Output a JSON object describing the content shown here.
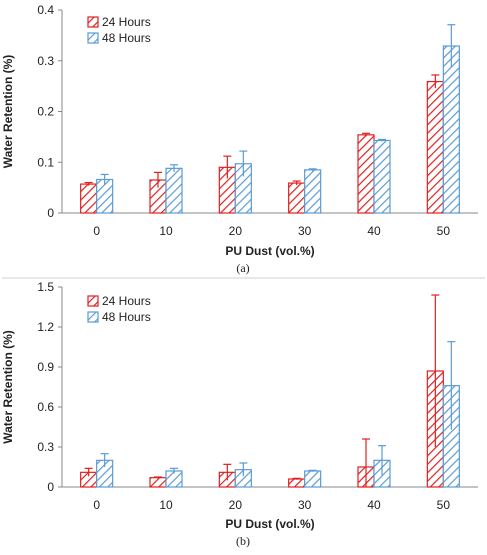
{
  "chart_data": [
    {
      "type": "bar",
      "caption": "(a)",
      "categories": [
        "0",
        "10",
        "20",
        "30",
        "40",
        "50"
      ],
      "xlabel": "PU Dust (vol.%)",
      "ylabel": "Water Retention (%)",
      "ylim": [
        0,
        0.4
      ],
      "yticks": [
        "0",
        "0.1",
        "0.2",
        "0.3",
        "0.4"
      ],
      "ytick_values": [
        0,
        0.1,
        0.2,
        0.3,
        0.4
      ],
      "grid": false,
      "legend_position": "top-left",
      "series": [
        {
          "name": "24 Hours",
          "color": "#e02020",
          "values": [
            0.057,
            0.065,
            0.09,
            0.059,
            0.154,
            0.259
          ],
          "errors": [
            0.003,
            0.015,
            0.022,
            0.004,
            0.003,
            0.013
          ]
        },
        {
          "name": "48 Hours",
          "color": "#5b9bd5",
          "values": [
            0.066,
            0.088,
            0.097,
            0.085,
            0.143,
            0.329
          ],
          "errors": [
            0.01,
            0.007,
            0.025,
            0.002,
            0.002,
            0.042
          ]
        }
      ]
    },
    {
      "type": "bar",
      "caption": "(b)",
      "categories": [
        "0",
        "10",
        "20",
        "30",
        "40",
        "50"
      ],
      "xlabel": "PU Dust (vol.%)",
      "ylabel": "Water Retention (%)",
      "ylim": [
        0,
        1.5
      ],
      "yticks": [
        "0",
        "0.3",
        "0.6",
        "0.9",
        "1.2",
        "1.5"
      ],
      "ytick_values": [
        0,
        0.3,
        0.6,
        0.9,
        1.2,
        1.5
      ],
      "grid": false,
      "legend_position": "top-left",
      "series": [
        {
          "name": "24 Hours",
          "color": "#e02020",
          "values": [
            0.11,
            0.07,
            0.11,
            0.06,
            0.15,
            0.87
          ],
          "errors": [
            0.03,
            0.005,
            0.06,
            0.005,
            0.21,
            0.57
          ]
        },
        {
          "name": "48 Hours",
          "color": "#5b9bd5",
          "values": [
            0.2,
            0.12,
            0.13,
            0.12,
            0.2,
            0.76
          ],
          "errors": [
            0.05,
            0.02,
            0.05,
            0.005,
            0.11,
            0.33
          ]
        }
      ]
    }
  ]
}
